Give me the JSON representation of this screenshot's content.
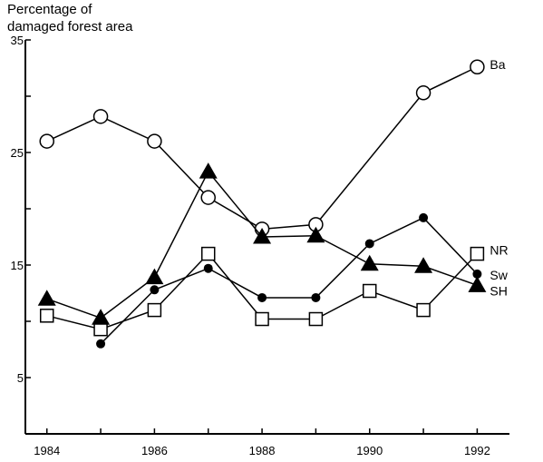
{
  "chart_data": {
    "type": "line",
    "ylabel_lines": [
      "Percentage of",
      "damaged forest area"
    ],
    "xlabel": "",
    "x": [
      1984,
      1985,
      1986,
      1987,
      1988,
      1989,
      1990,
      1991,
      1992
    ],
    "xlim": [
      1983.6,
      1992.6
    ],
    "ylim": [
      0,
      35
    ],
    "y_ticks": [
      5,
      10,
      15,
      20,
      25,
      30,
      35
    ],
    "y_tick_labels": [
      "5",
      "",
      "15",
      "",
      "25",
      "",
      "35"
    ],
    "x_ticks": [
      1984,
      1985,
      1986,
      1987,
      1988,
      1989,
      1990,
      1991,
      1992
    ],
    "x_tick_labels": [
      "1984",
      "",
      "1986",
      "",
      "1988",
      "",
      "1990",
      "",
      "1992"
    ],
    "grid": false,
    "series": [
      {
        "name": "Ba",
        "marker": "open-circle",
        "points": [
          [
            1984,
            26.0
          ],
          [
            1985,
            28.2
          ],
          [
            1986,
            26.0
          ],
          [
            1987,
            21.0
          ],
          [
            1988,
            18.2
          ],
          [
            1989,
            18.6
          ],
          [
            1991,
            30.3
          ],
          [
            1992,
            32.6
          ]
        ]
      },
      {
        "name": "NR",
        "marker": "open-square",
        "points": [
          [
            1984,
            10.5
          ],
          [
            1985,
            9.3
          ],
          [
            1986,
            11.0
          ],
          [
            1987,
            16.0
          ],
          [
            1988,
            10.2
          ],
          [
            1989,
            10.2
          ],
          [
            1990,
            12.7
          ],
          [
            1991,
            11.0
          ],
          [
            1992,
            16.0
          ]
        ]
      },
      {
        "name": "Sw",
        "marker": "filled-circle",
        "points": [
          [
            1985,
            8.0
          ],
          [
            1986,
            12.8
          ],
          [
            1987,
            14.7
          ],
          [
            1988,
            12.1
          ],
          [
            1989,
            12.1
          ],
          [
            1990,
            16.9
          ],
          [
            1991,
            19.2
          ],
          [
            1992,
            14.2
          ]
        ]
      },
      {
        "name": "SH",
        "marker": "filled-triangle",
        "points": [
          [
            1984,
            12.0
          ],
          [
            1985,
            10.3
          ],
          [
            1986,
            13.9
          ],
          [
            1987,
            23.3
          ],
          [
            1988,
            17.5
          ],
          [
            1989,
            17.6
          ],
          [
            1990,
            15.1
          ],
          [
            1991,
            14.9
          ],
          [
            1992,
            13.2
          ]
        ]
      }
    ]
  }
}
